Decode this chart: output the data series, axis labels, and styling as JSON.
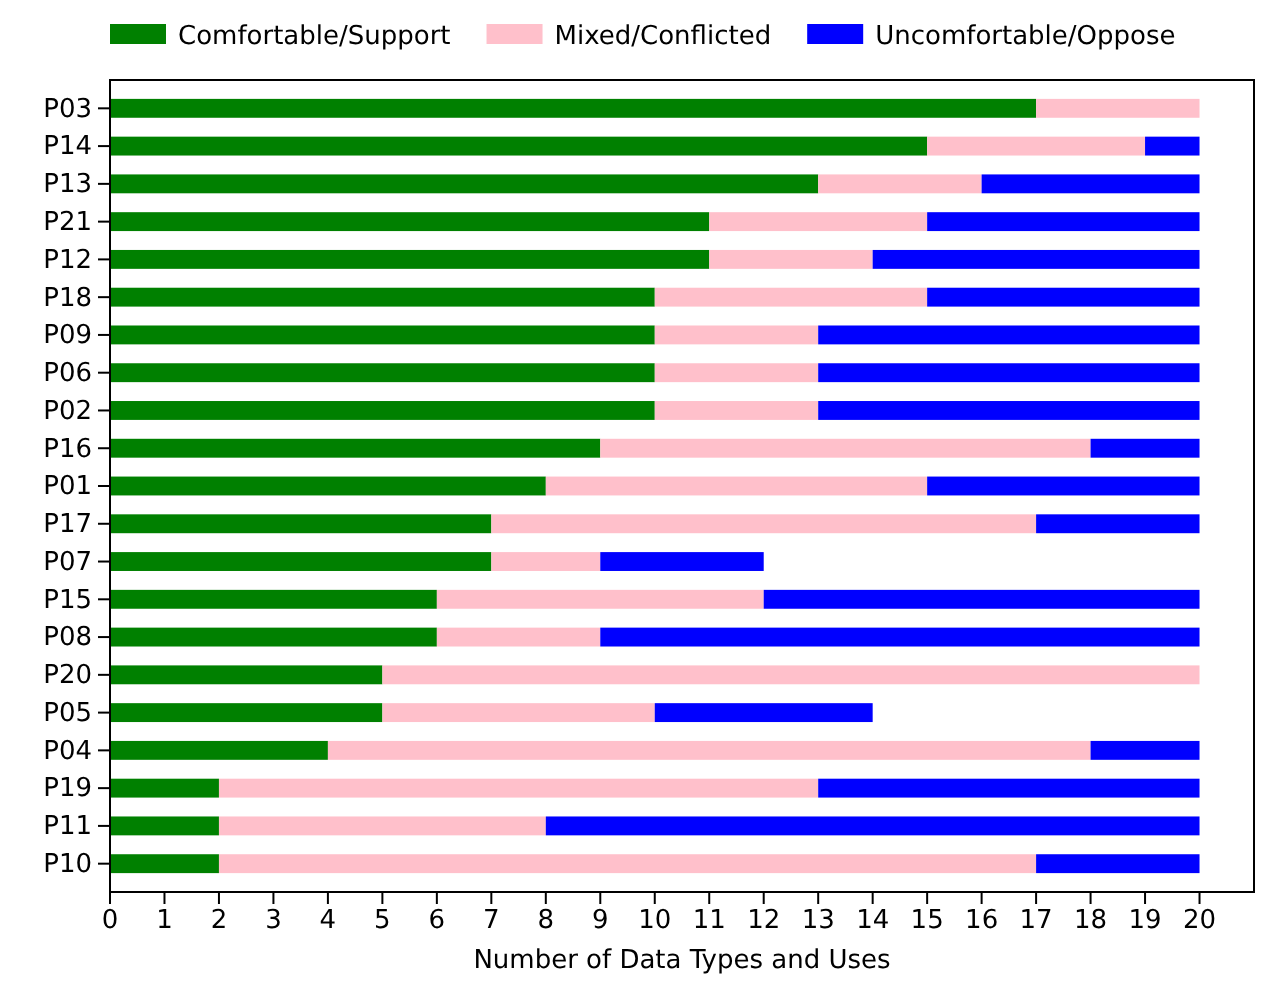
{
  "chart_data": {
    "type": "bar",
    "orientation": "horizontal",
    "stacked": true,
    "categories": [
      "P03",
      "P14",
      "P13",
      "P21",
      "P12",
      "P18",
      "P09",
      "P06",
      "P02",
      "P16",
      "P01",
      "P17",
      "P07",
      "P15",
      "P08",
      "P20",
      "P05",
      "P04",
      "P19",
      "P11",
      "P10"
    ],
    "series": [
      {
        "name": "Comfortable/Support",
        "color": "#008000",
        "values": [
          17,
          15,
          13,
          11,
          11,
          10,
          10,
          10,
          10,
          9,
          8,
          7,
          7,
          6,
          6,
          5,
          5,
          4,
          2,
          2,
          2
        ]
      },
      {
        "name": "Mixed/Conflicted",
        "color": "#ffc0cb",
        "values": [
          3,
          4,
          3,
          4,
          3,
          5,
          3,
          3,
          3,
          9,
          7,
          10,
          2,
          6,
          3,
          15,
          5,
          14,
          11,
          6,
          15
        ]
      },
      {
        "name": "Uncomfortable/Oppose",
        "color": "#0000ff",
        "values": [
          0,
          1,
          4,
          5,
          6,
          5,
          7,
          7,
          7,
          2,
          5,
          3,
          3,
          8,
          11,
          0,
          4,
          2,
          7,
          12,
          3
        ]
      }
    ],
    "xlim": [
      0,
      21
    ],
    "xticks": [
      0,
      1,
      2,
      3,
      4,
      5,
      6,
      7,
      8,
      9,
      10,
      11,
      12,
      13,
      14,
      15,
      16,
      17,
      18,
      19,
      20
    ],
    "xlabel": "Number of Data Types and Uses",
    "legend": "top left"
  }
}
